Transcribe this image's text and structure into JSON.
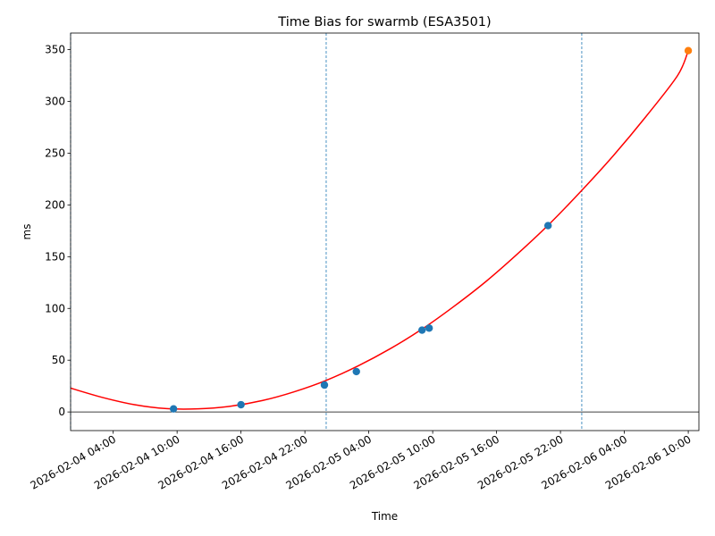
{
  "chart_data": {
    "type": "scatter",
    "title": "Time Bias for swarmb (ESA3501)",
    "xlabel": "Time",
    "ylabel": "ms",
    "xlim": [
      "2026-02-04 00:00",
      "2026-02-06 11:00"
    ],
    "ylim": [
      -18,
      366
    ],
    "yticks": [
      0,
      50,
      100,
      150,
      200,
      250,
      300,
      350
    ],
    "xticks": [
      "2026-02-04 04:00",
      "2026-02-04 10:00",
      "2026-02-04 16:00",
      "2026-02-04 22:00",
      "2026-02-05 04:00",
      "2026-02-05 10:00",
      "2026-02-05 16:00",
      "2026-02-05 22:00",
      "2026-02-06 04:00",
      "2026-02-06 10:00"
    ],
    "vertical_lines": [
      "2026-02-04 00:00",
      "2026-02-05 00:00",
      "2026-02-06 00:00"
    ],
    "zero_line": 0,
    "series": [
      {
        "kind": "fit",
        "color": "#ff0000",
        "points": [
          [
            "2026-02-04 00:00",
            23
          ],
          [
            "2026-02-04 03:00",
            14
          ],
          [
            "2026-02-04 06:00",
            7
          ],
          [
            "2026-02-04 09:00",
            3.2
          ],
          [
            "2026-02-04 12:00",
            3.0
          ],
          [
            "2026-02-04 15:00",
            5.5
          ],
          [
            "2026-02-04 18:00",
            11
          ],
          [
            "2026-02-04 21:00",
            19.5
          ],
          [
            "2026-02-05 00:00",
            30.5
          ],
          [
            "2026-02-05 03:00",
            44.5
          ],
          [
            "2026-02-05 06:00",
            61
          ],
          [
            "2026-02-05 09:00",
            80
          ],
          [
            "2026-02-05 12:00",
            102
          ],
          [
            "2026-02-05 15:00",
            126
          ],
          [
            "2026-02-05 18:00",
            153
          ],
          [
            "2026-02-05 21:00",
            182
          ],
          [
            "2026-02-06 00:00",
            214
          ],
          [
            "2026-02-06 03:00",
            248
          ],
          [
            "2026-02-06 06:00",
            285
          ],
          [
            "2026-02-06 09:00",
            325
          ],
          [
            "2026-02-06 10:00",
            349
          ]
        ]
      },
      {
        "kind": "measured",
        "color": "#1f77b4",
        "points": [
          [
            "2026-02-04 09:40",
            3
          ],
          [
            "2026-02-04 16:00",
            7
          ],
          [
            "2026-02-04 23:50",
            26
          ],
          [
            "2026-02-05 02:50",
            39
          ],
          [
            "2026-02-05 09:00",
            79
          ],
          [
            "2026-02-05 09:40",
            81
          ],
          [
            "2026-02-05 20:50",
            180
          ]
        ]
      },
      {
        "kind": "predicted",
        "color": "#ff7f0e",
        "points": [
          [
            "2026-02-06 10:00",
            349
          ]
        ]
      }
    ],
    "grid": false,
    "legend": "none"
  }
}
